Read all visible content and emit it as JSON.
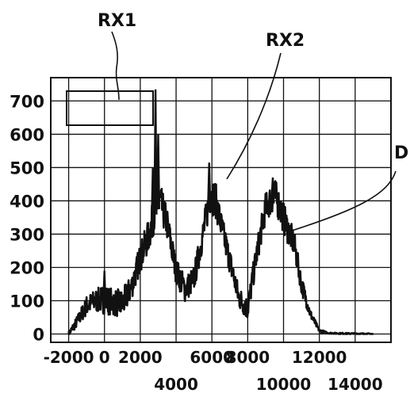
{
  "chart_data": {
    "type": "line",
    "title": "",
    "xlabel": "",
    "ylabel": "",
    "xlim": [
      -3000,
      16000
    ],
    "ylim": [
      -25,
      770
    ],
    "grid": true,
    "legend": "none",
    "x_ticks_row1": [
      -2000,
      0,
      2000,
      6000,
      8000,
      12000
    ],
    "x_ticks_row2": [
      4000,
      10000,
      14000
    ],
    "x_tick_labels_row1": [
      "-2000",
      "0",
      "2000",
      "6000",
      "8000",
      "12000"
    ],
    "x_tick_labels_row2": [
      "4000",
      "10000",
      "14000"
    ],
    "y_ticks": [
      0,
      100,
      200,
      300,
      400,
      500,
      600,
      700
    ],
    "y_tick_labels": [
      "0",
      "100",
      "200",
      "300",
      "400",
      "500",
      "600",
      "700"
    ],
    "series": [
      {
        "name": "",
        "x": [
          -2000,
          -1500,
          -1000,
          -500,
          0,
          500,
          1000,
          1500,
          2000,
          2500,
          2900,
          3100,
          3500,
          4000,
          4500,
          5000,
          5500,
          5900,
          6200,
          6500,
          7000,
          7500,
          8000,
          8500,
          9000,
          9500,
          9800,
          10200,
          10600,
          11000,
          11500,
          12000,
          12500,
          13000,
          14000,
          15000
        ],
        "y": [
          0,
          40,
          85,
          100,
          105,
          95,
          90,
          140,
          230,
          300,
          390,
          400,
          330,
          190,
          135,
          165,
          300,
          415,
          405,
          330,
          220,
          110,
          75,
          240,
          380,
          420,
          380,
          320,
          270,
          150,
          60,
          10,
          3,
          2,
          1,
          0
        ],
        "noise": [
          8,
          18,
          30,
          35,
          45,
          40,
          45,
          40,
          45,
          50,
          60,
          55,
          50,
          40,
          40,
          40,
          45,
          55,
          55,
          45,
          40,
          35,
          35,
          40,
          45,
          50,
          50,
          45,
          40,
          30,
          15,
          5,
          2,
          2,
          2,
          2
        ]
      }
    ],
    "spikes": [
      {
        "x": 0,
        "y": 190
      },
      {
        "x": 2700,
        "y": 500
      },
      {
        "x": 2850,
        "y": 735
      },
      {
        "x": 3000,
        "y": 600
      },
      {
        "x": 5850,
        "y": 515
      },
      {
        "x": 9400,
        "y": 470
      }
    ],
    "annotations": [
      {
        "text": "RX1"
      },
      {
        "text": "RX2"
      },
      {
        "text": "D"
      }
    ]
  },
  "colors": {
    "line": "#111111",
    "grid": "#111111",
    "background": "#ffffff"
  }
}
